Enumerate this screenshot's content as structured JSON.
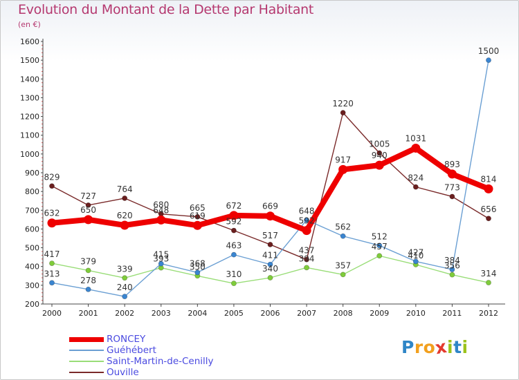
{
  "title": "Evolution du Montant de la Dette par Habitant",
  "subtitle": "(en €)",
  "logo": {
    "letters": [
      "P",
      "r",
      "o",
      "x",
      "i",
      "t",
      "i"
    ],
    "colors": [
      "#2f86c7",
      "#f2a01e",
      "#f2a01e",
      "#e43a2e",
      "#9bc21c",
      "#2f86c7",
      "#9bc21c"
    ]
  },
  "chart_data": {
    "type": "line",
    "title": "Evolution du Montant de la Dette par Habitant",
    "subtitle": "(en €)",
    "x": [
      "2000",
      "2001",
      "2002",
      "2003",
      "2004",
      "2005",
      "2006",
      "2007",
      "2008",
      "2009",
      "2010",
      "2011",
      "2012"
    ],
    "ylim": [
      200,
      1600
    ],
    "yticks": [
      200,
      300,
      400,
      500,
      600,
      700,
      800,
      900,
      1000,
      1100,
      1200,
      1300,
      1400,
      1500,
      1600
    ],
    "grid": false,
    "legend": "bottom-left",
    "series": [
      {
        "name": "Ouville",
        "color": "#7a2a2a",
        "marker": "#6b1f1f",
        "values": [
          829,
          727,
          764,
          680,
          665,
          592,
          517,
          437,
          1220,
          1005,
          824,
          773,
          656
        ]
      },
      {
        "name": "Saint-Martin-de-Cenilly",
        "color": "#99dd77",
        "marker": "#7fcc3a",
        "values": [
          417,
          379,
          339,
          393,
          350,
          310,
          340,
          394,
          357,
          457,
          410,
          356,
          314
        ]
      },
      {
        "name": "Guéhébert",
        "color": "#6a9fd3",
        "marker": "#3a85d0",
        "values": [
          313,
          278,
          240,
          415,
          368,
          463,
          411,
          648,
          562,
          512,
          427,
          384,
          1500
        ]
      },
      {
        "name": "RONCEY",
        "color": "#ee0000",
        "marker": "#ee0000",
        "values": [
          632,
          650,
          620,
          648,
          619,
          672,
          669,
          592,
          917,
          940,
          1031,
          893,
          814
        ]
      }
    ],
    "legend_order": [
      "RONCEY",
      "Guéhébert",
      "Saint-Martin-de-Cenilly",
      "Ouville"
    ]
  }
}
